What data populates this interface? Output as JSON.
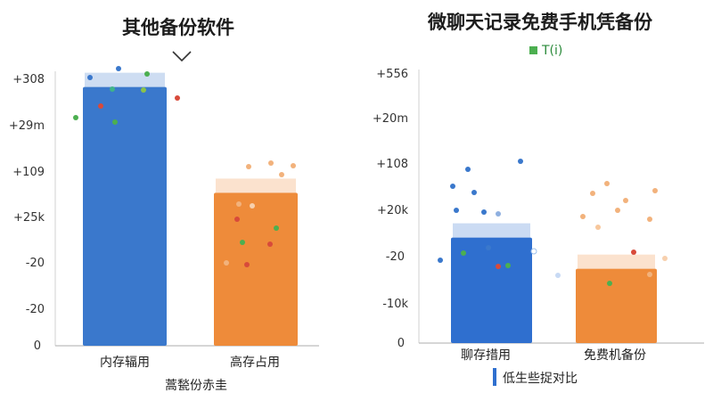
{
  "chart_data": [
    {
      "type": "bar",
      "title": "其他备份软件",
      "xlabel": "蒿甃份赤圭",
      "ylabel": "",
      "yticks": [
        "+308",
        "+29m",
        "+109",
        "+25k",
        "-20",
        "-20",
        "0"
      ],
      "categories": [
        "内存辐用",
        "高存占用"
      ],
      "series": [
        {
          "values": [
            6.6,
            3.9
          ]
        }
      ],
      "bar_colors": [
        "#3a78cc",
        "#ee8b3a"
      ],
      "ylim": [
        0,
        7
      ],
      "grid": false,
      "legend": "none"
    },
    {
      "type": "bar",
      "title": "微聊天记录免费手机凭备份",
      "xlabel": "",
      "ylabel": "",
      "legend_label": "T(i)",
      "legend_color": "#4caf50",
      "note_label": "低生些捉对比",
      "note_color": "#2f6fcf",
      "yticks": [
        "+556",
        "+20m",
        "+108",
        "+20k",
        "-20",
        "-10k",
        "0"
      ],
      "categories": [
        "聊存措用",
        "免费机备份"
      ],
      "series": [
        {
          "values": [
            2.7,
            1.9
          ]
        }
      ],
      "bar_colors": [
        "#2f6fcf",
        "#ee8b3a"
      ],
      "ylim": [
        0,
        7
      ],
      "grid": false,
      "legend": "top"
    }
  ]
}
